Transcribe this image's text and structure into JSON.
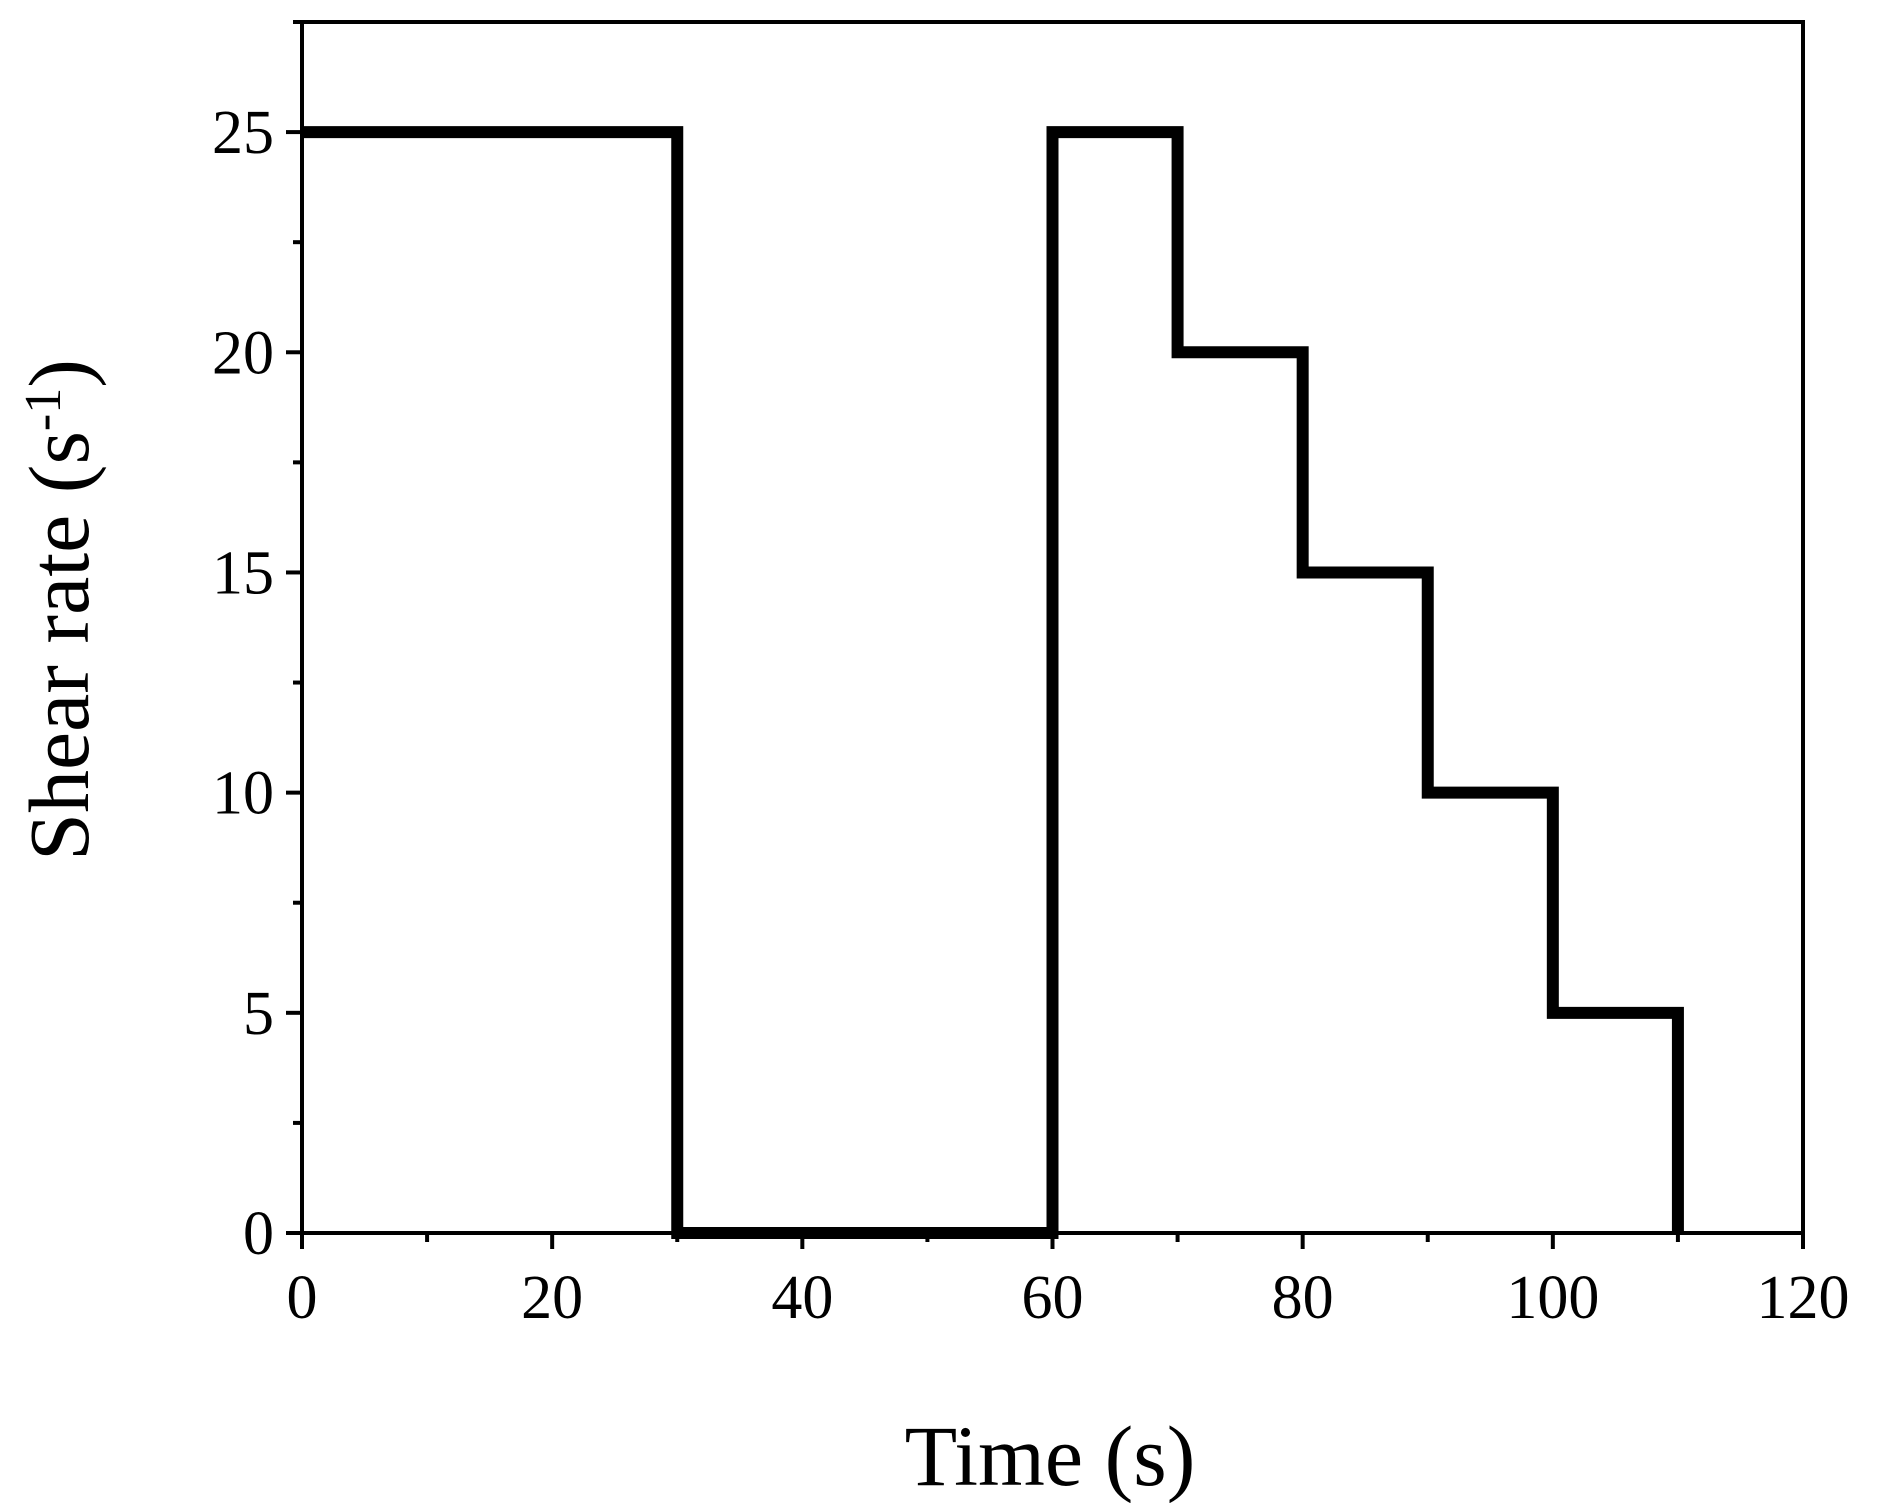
{
  "chart_data": {
    "type": "line",
    "step": true,
    "title": "",
    "xlabel": "Time (s)",
    "ylabel": "Shear rate (s-1)",
    "ylabel_parts": {
      "main": "Shear rate (s",
      "superscript": "-1",
      "close": ")"
    },
    "xlim": [
      0,
      120
    ],
    "ylim": [
      0,
      27.5
    ],
    "xticks": [
      0,
      20,
      40,
      60,
      80,
      100,
      120
    ],
    "xtick_labels": [
      "0",
      "20",
      "40",
      "60",
      "80",
      "100",
      "120"
    ],
    "yticks": [
      0,
      5,
      10,
      15,
      20,
      25
    ],
    "ytick_labels": [
      "0",
      "5",
      "10",
      "15",
      "20",
      "25"
    ],
    "x_minor_step": 10,
    "y_minor_step": 2.5,
    "grid": false,
    "legend": "none",
    "line_color": "#000000",
    "series": [
      {
        "x": [
          0,
          30,
          30,
          60,
          60,
          70,
          70,
          80,
          80,
          90,
          90,
          100,
          100,
          110,
          110
        ],
        "y": [
          25,
          25,
          0,
          0,
          25,
          25,
          20,
          20,
          15,
          15,
          10,
          10,
          5,
          5,
          0
        ]
      }
    ]
  }
}
